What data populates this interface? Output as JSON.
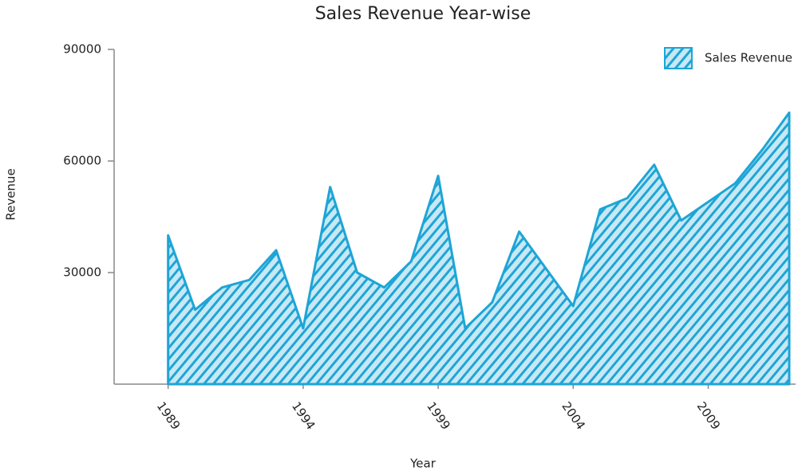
{
  "chart_data": {
    "type": "area",
    "title": "Sales Revenue Year-wise",
    "x_label": "Year",
    "y_label": "Revenue",
    "x": [
      1989,
      1990,
      1991,
      1992,
      1993,
      1994,
      1995,
      1996,
      1997,
      1998,
      1999,
      2000,
      2001,
      2002,
      2003,
      2004,
      2005,
      2006,
      2007,
      2008,
      2009,
      2010,
      2011,
      2012
    ],
    "series": [
      {
        "name": "Sales Revenue",
        "color": "#1ea5d6",
        "values": [
          40000,
          20000,
          26000,
          28000,
          36000,
          15000,
          53000,
          30000,
          26000,
          33000,
          56000,
          15000,
          22000,
          41000,
          31000,
          21000,
          47000,
          50000,
          59000,
          44000,
          49000,
          54000,
          63000,
          73000
        ]
      }
    ],
    "xlim": [
      1987,
      2012
    ],
    "xticks": [
      1989,
      1994,
      1999,
      2004,
      2009
    ],
    "ylim": [
      0,
      90000
    ],
    "yticks": [
      30000,
      60000,
      90000
    ],
    "legend": "top-right"
  }
}
